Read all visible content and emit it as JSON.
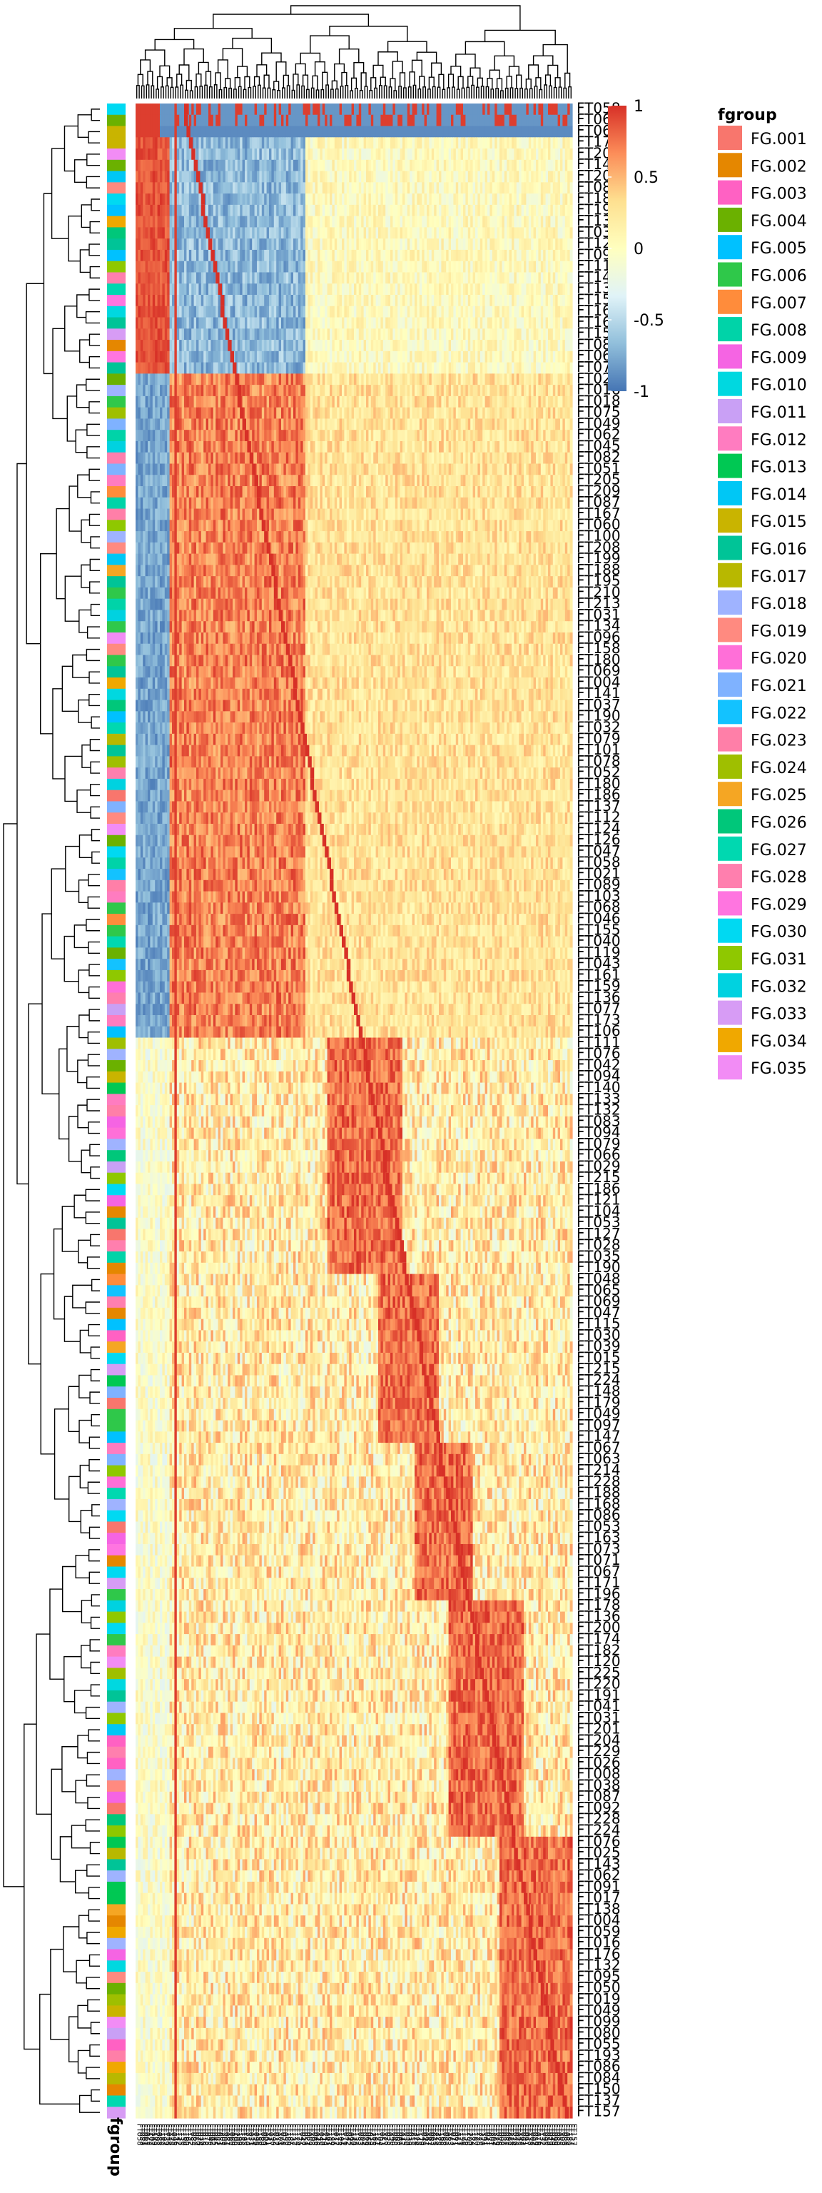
{
  "chart_data": {
    "type": "heatmap",
    "title": "",
    "value_range": [
      -1,
      1
    ],
    "colorbar": {
      "ticks": [
        1,
        0.5,
        0,
        -0.5,
        -1
      ],
      "tick_labels": [
        "1",
        "0.5",
        "0",
        "-0.5",
        "-1"
      ],
      "colors": [
        "#D73027",
        "#FC8D59",
        "#FEE090",
        "#FFFFBF",
        "#E0F3F8",
        "#91BFDB",
        "#4575B4"
      ]
    },
    "annotation_legend": {
      "title": "fgroup",
      "entries": [
        {
          "label": "FG.001",
          "color": "#F8766D"
        },
        {
          "label": "FG.002",
          "color": "#E58700"
        },
        {
          "label": "FG.003",
          "color": "#FF61C3"
        },
        {
          "label": "FG.004",
          "color": "#6BB100"
        },
        {
          "label": "FG.005",
          "color": "#00C1FF"
        },
        {
          "label": "FG.006",
          "color": "#2FC84A"
        },
        {
          "label": "FG.007",
          "color": "#FF8C3B"
        },
        {
          "label": "FG.008",
          "color": "#00D3A8"
        },
        {
          "label": "FG.009",
          "color": "#F564E3"
        },
        {
          "label": "FG.010",
          "color": "#00D8E0"
        },
        {
          "label": "FG.011",
          "color": "#C9A0F5"
        },
        {
          "label": "FG.012",
          "color": "#FF7CC0"
        },
        {
          "label": "FG.013",
          "color": "#00C853"
        },
        {
          "label": "FG.014",
          "color": "#00C7F5"
        },
        {
          "label": "FG.015",
          "color": "#C9B400"
        },
        {
          "label": "FG.016",
          "color": "#00C497"
        },
        {
          "label": "FG.017",
          "color": "#B8B800"
        },
        {
          "label": "FG.018",
          "color": "#9FB3FF"
        },
        {
          "label": "FG.019",
          "color": "#FF8A80"
        },
        {
          "label": "FG.020",
          "color": "#FF6FD8"
        },
        {
          "label": "FG.021",
          "color": "#7FB2FF"
        },
        {
          "label": "FG.022",
          "color": "#13C2FF"
        },
        {
          "label": "FG.023",
          "color": "#FF7FA8"
        },
        {
          "label": "FG.024",
          "color": "#9FBF00"
        },
        {
          "label": "FG.025",
          "color": "#F5A623"
        },
        {
          "label": "FG.026",
          "color": "#00C77A"
        },
        {
          "label": "FG.027",
          "color": "#00D8B0"
        },
        {
          "label": "FG.028",
          "color": "#FF7FAE"
        },
        {
          "label": "FG.029",
          "color": "#FF75E0"
        },
        {
          "label": "FG.030",
          "color": "#00D9F2"
        },
        {
          "label": "FG.031",
          "color": "#8FC800"
        },
        {
          "label": "FG.032",
          "color": "#00D2E0"
        },
        {
          "label": "FG.033",
          "color": "#D79CF5"
        },
        {
          "label": "FG.034",
          "color": "#F0A800"
        },
        {
          "label": "FG.035",
          "color": "#F28CF5"
        }
      ]
    },
    "row_labels": [
      "FT058",
      "FT061",
      "FT063",
      "FT172",
      "FT202",
      "FT149",
      "FT203",
      "FT088",
      "FT184",
      "FT194",
      "FT139",
      "FT034",
      "FT128",
      "FT095",
      "FT116",
      "FT142",
      "FT135",
      "FT150",
      "FT160",
      "FT165",
      "FT152",
      "FT084",
      "FT064",
      "FT070",
      "FT024",
      "FT016",
      "FT018",
      "FT075",
      "FT049",
      "FT062",
      "FT045",
      "FT082",
      "FT051",
      "FT205",
      "FT209",
      "FT087",
      "FT167",
      "FT060",
      "FT100",
      "FT208",
      "FT199",
      "FT188",
      "FT195",
      "FT210",
      "FT213",
      "FT031",
      "FT134",
      "FT096",
      "FT158",
      "FT180",
      "FT069",
      "FT004",
      "FT141",
      "FT037",
      "FT190",
      "FT032",
      "FT079",
      "FT101",
      "FT078",
      "FT052",
      "FT180",
      "FT186",
      "FT137",
      "FT112",
      "FT124",
      "FT126",
      "FT047",
      "FT058",
      "FT021",
      "FT089",
      "FT103",
      "FT068",
      "FT046",
      "FT155",
      "FT040",
      "FT119",
      "FT043",
      "FT161",
      "FT159",
      "FT136",
      "FT077",
      "FT173",
      "FT106",
      "FT111",
      "FT076",
      "FT042",
      "FT094",
      "FT140",
      "FT133",
      "FT132",
      "FT083",
      "FT094",
      "FT079",
      "FT066",
      "FT029",
      "FT215",
      "FT186",
      "FT121",
      "FT104",
      "FT053",
      "FT127",
      "FT028",
      "FT035",
      "FT190",
      "FT048",
      "FT065",
      "FT069",
      "FT047",
      "FT115",
      "FT030",
      "FT039",
      "FT015",
      "FT215",
      "FT224",
      "FT148",
      "FT179",
      "FT049",
      "FT097",
      "FT147",
      "FT067",
      "FT063",
      "FT214",
      "FT228",
      "FT188",
      "FT168",
      "FT086",
      "FT053",
      "FT163",
      "FT073",
      "FT071",
      "FT067",
      "FT171",
      "FT196",
      "FT178",
      "FT136",
      "FT200",
      "FT174",
      "FT182",
      "FT120",
      "FT225",
      "FT220",
      "FT191",
      "FT041",
      "FT031",
      "FT201",
      "FT204",
      "FT229",
      "FT026",
      "FT008",
      "FT038",
      "FT087",
      "FT092",
      "FT228",
      "FT224",
      "FT076",
      "FT025",
      "FT143",
      "FT062",
      "FT091",
      "FT017",
      "FT138",
      "FT004",
      "FT059",
      "FT016",
      "FT176",
      "FT132",
      "FT095",
      "FT050",
      "FT019",
      "FT049",
      "FT099",
      "FT080",
      "FT055",
      "FT193",
      "FT086",
      "FT084",
      "FT150",
      "FT137",
      "FT157"
    ],
    "clusters": [
      {
        "from_row": 0,
        "to_row": 2,
        "kind": "header"
      },
      {
        "from_row": 3,
        "to_row": 23,
        "kind": "anti"
      },
      {
        "from_row": 24,
        "to_row": 82,
        "kind": "block"
      },
      {
        "from_row": 83,
        "to_row": 103,
        "kind": "block"
      },
      {
        "from_row": 104,
        "to_row": 118,
        "kind": "block"
      },
      {
        "from_row": 119,
        "to_row": 132,
        "kind": "block"
      },
      {
        "from_row": 133,
        "to_row": 153,
        "kind": "block"
      },
      {
        "from_row": 154,
        "to_row": 183,
        "kind": "block"
      }
    ]
  }
}
